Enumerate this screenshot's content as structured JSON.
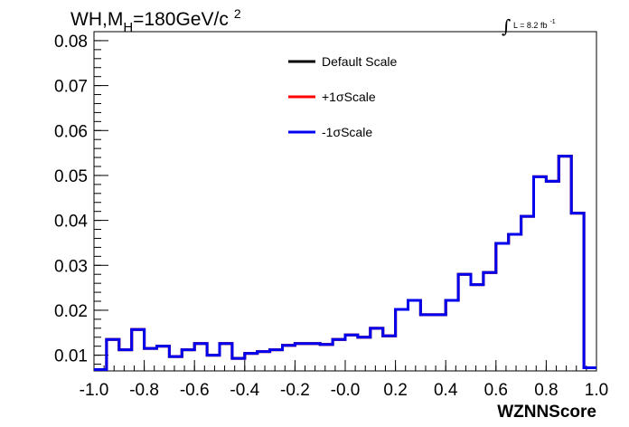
{
  "chart_data": {
    "type": "line",
    "title": "WH,M",
    "title_sub": "H",
    "title_rest": "=180GeV/c",
    "title_sup": "2",
    "lumi_label": "L = 8.2 fb",
    "lumi_sup": "-1",
    "xlabel": "WZNNScore",
    "ylabel": "",
    "xlim": [
      -1.0,
      1.0
    ],
    "ylim": [
      0.0065,
      0.082
    ],
    "x_ticks": [
      "-1.0",
      "-0.8",
      "-0.6",
      "-0.4",
      "-0.2",
      "-0.0",
      "0.2",
      "0.4",
      "0.6",
      "0.8",
      "1.0"
    ],
    "x_tick_values": [
      -1.0,
      -0.8,
      -0.6,
      -0.4,
      -0.2,
      0.0,
      0.2,
      0.4,
      0.6,
      0.8,
      1.0
    ],
    "y_ticks": [
      "0.01",
      "0.02",
      "0.03",
      "0.04",
      "0.05",
      "0.06",
      "0.07",
      "0.08"
    ],
    "y_tick_values": [
      0.01,
      0.02,
      0.03,
      0.04,
      0.05,
      0.06,
      0.07,
      0.08
    ],
    "grid": false,
    "legend_position": "top-center",
    "bin_edges": [
      -1.0,
      -0.95,
      -0.9,
      -0.85,
      -0.8,
      -0.75,
      -0.7,
      -0.65,
      -0.6,
      -0.55,
      -0.5,
      -0.45,
      -0.4,
      -0.35,
      -0.3,
      -0.25,
      -0.2,
      -0.15,
      -0.1,
      -0.05,
      0.0,
      0.05,
      0.1,
      0.15,
      0.2,
      0.25,
      0.3,
      0.35,
      0.4,
      0.45,
      0.5,
      0.55,
      0.6,
      0.65,
      0.7,
      0.75,
      0.8,
      0.85,
      0.9,
      0.95,
      1.0
    ],
    "series": [
      {
        "name": "Default Scale",
        "color": "#000000",
        "values": [
          0.0068,
          0.0135,
          0.0112,
          0.0157,
          0.0115,
          0.012,
          0.0097,
          0.0112,
          0.0126,
          0.01,
          0.0126,
          0.0093,
          0.0104,
          0.0108,
          0.0112,
          0.0122,
          0.0126,
          0.0126,
          0.0124,
          0.0135,
          0.0145,
          0.014,
          0.016,
          0.0143,
          0.0202,
          0.0222,
          0.019,
          0.019,
          0.0222,
          0.028,
          0.0257,
          0.0284,
          0.0349,
          0.0369,
          0.0409,
          0.0497,
          0.0487,
          0.0543,
          0.0416,
          0.0072
        ]
      },
      {
        "name": "+1σScale",
        "color": "#ff0000",
        "values": [
          0.0068,
          0.0135,
          0.0112,
          0.0157,
          0.0115,
          0.012,
          0.0097,
          0.0112,
          0.0126,
          0.01,
          0.0126,
          0.0093,
          0.0104,
          0.0108,
          0.0112,
          0.0122,
          0.0126,
          0.0126,
          0.0124,
          0.0135,
          0.0145,
          0.014,
          0.016,
          0.0143,
          0.0202,
          0.0222,
          0.019,
          0.019,
          0.0222,
          0.028,
          0.0257,
          0.0284,
          0.0349,
          0.0369,
          0.0409,
          0.0497,
          0.0487,
          0.0543,
          0.0416,
          0.0072
        ]
      },
      {
        "name": "-1σScale",
        "color": "#0000ee",
        "values": [
          0.0068,
          0.0135,
          0.0112,
          0.0157,
          0.0115,
          0.012,
          0.0097,
          0.0112,
          0.0126,
          0.01,
          0.0126,
          0.0093,
          0.0104,
          0.0108,
          0.0112,
          0.0122,
          0.0126,
          0.0126,
          0.0124,
          0.0135,
          0.0145,
          0.014,
          0.016,
          0.0143,
          0.0202,
          0.0222,
          0.019,
          0.019,
          0.0222,
          0.028,
          0.0257,
          0.0284,
          0.0349,
          0.0369,
          0.0409,
          0.0497,
          0.0487,
          0.0543,
          0.0416,
          0.0072
        ]
      }
    ]
  }
}
